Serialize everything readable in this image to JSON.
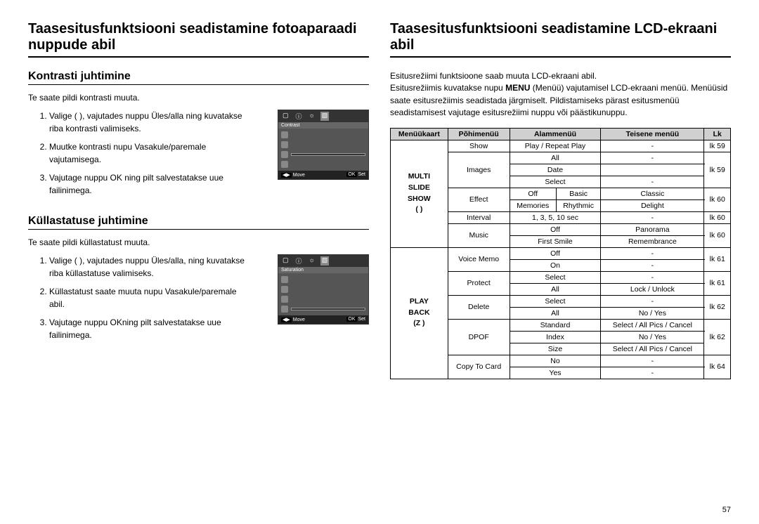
{
  "page_number": "57",
  "left": {
    "title": "Taasesitusfunktsiooni seadistamine fotoaparaadi nuppude abil",
    "section1": {
      "heading": "Kontrasti juhtimine",
      "intro": "Te saate pildi kontrasti muuta.",
      "steps": [
        "Valige (   ), vajutades nuppu Üles/alla ning kuvatakse riba kontrasti valimiseks.",
        "Muutke kontrasti nupu Vasakule/paremale vajutamisega.",
        "Vajutage nuppu OK ning pilt salvestatakse uue failinimega."
      ],
      "lcd_label": "Contrast"
    },
    "section2": {
      "heading": "Küllastatuse juhtimine",
      "intro": "Te saate pildi küllastatust muuta.",
      "steps": [
        "Valige (   ), vajutades nuppu Üles/alla, ning kuvatakse riba küllastatuse valimiseks.",
        "Küllastatust saate muuta nupu Vasakule/paremale abil.",
        "Vajutage nuppu OKning pilt salvestatakse uue failinimega."
      ],
      "lcd_label": "Saturation"
    },
    "lcd_footer": {
      "move_key": "◀▶",
      "move": "Move",
      "ok_key": "OK",
      "set": "Set"
    }
  },
  "right": {
    "title": "Taasesitusfunktsiooni seadistamine LCD-ekraani abil",
    "intro_html": "Esitusrežiimi funktsioone saab muuta LCD-ekraani abil.<br>Esitusrežiimis kuvatakse nupu <b>MENU</b> (Menüü) vajutamisel LCD-ekraani menüü. Menüüsid saate esitusrežiimis seadistada järgmiselt. Pildistamiseks pärast esitusmenüü seadistamisest vajutage esitusrežiimi nuppu või päästikunuppu.",
    "headers": [
      "Menüükaart",
      "Põhimenüü",
      "Alammenüü",
      "Teisene menüü",
      "Lk"
    ],
    "tabs": {
      "multi": "MULTI\nSLIDE\nSHOW\n(  )",
      "play": "PLAY\nBACK\n(Z  )"
    },
    "rows_multi": [
      {
        "main": "Show",
        "sub": [
          {
            "a": "Play / Repeat Play",
            "t": "-"
          }
        ],
        "lk": "lk 59"
      },
      {
        "main": "Images",
        "sub": [
          {
            "a": "All",
            "t": "-"
          },
          {
            "a": "Date",
            "t": ""
          },
          {
            "a": "Select",
            "t": "-"
          }
        ],
        "lk": "lk 59"
      },
      {
        "main": "Effect",
        "sub": [
          {
            "a": "Off",
            "t": "Basic",
            "t2": "Classic"
          },
          {
            "a": "Memories",
            "t": "Rhythmic",
            "t2": "Delight"
          }
        ],
        "lk": "lk 60"
      },
      {
        "main": "Interval",
        "sub": [
          {
            "a": "1, 3, 5, 10 sec",
            "t": "-"
          }
        ],
        "lk": "lk 60"
      },
      {
        "main": "Music",
        "sub": [
          {
            "a": "Off",
            "t": "Panorama"
          },
          {
            "a": "First Smile",
            "t": "Remembrance"
          }
        ],
        "lk": "lk 60"
      }
    ],
    "rows_play": [
      {
        "main": "Voice Memo",
        "sub": [
          {
            "a": "Off",
            "t": "-"
          },
          {
            "a": "On",
            "t": "-"
          }
        ],
        "lk": "lk 61"
      },
      {
        "main": "Protect",
        "sub": [
          {
            "a": "Select",
            "t": "-"
          },
          {
            "a": "All",
            "t": "Lock / Unlock"
          }
        ],
        "lk": "lk 61"
      },
      {
        "main": "Delete",
        "sub": [
          {
            "a": "Select",
            "t": "-"
          },
          {
            "a": "All",
            "t": "No / Yes"
          }
        ],
        "lk": "lk 62"
      },
      {
        "main": "DPOF",
        "sub": [
          {
            "a": "Standard",
            "t": "Select / All Pics / Cancel"
          },
          {
            "a": "Index",
            "t": "No / Yes"
          },
          {
            "a": "Size",
            "t": "Select / All Pics / Cancel"
          }
        ],
        "lk": "lk 62"
      },
      {
        "main": "Copy To Card",
        "sub": [
          {
            "a": "No",
            "t": "-"
          },
          {
            "a": "Yes",
            "t": "-"
          }
        ],
        "lk": "lk 64"
      }
    ]
  }
}
